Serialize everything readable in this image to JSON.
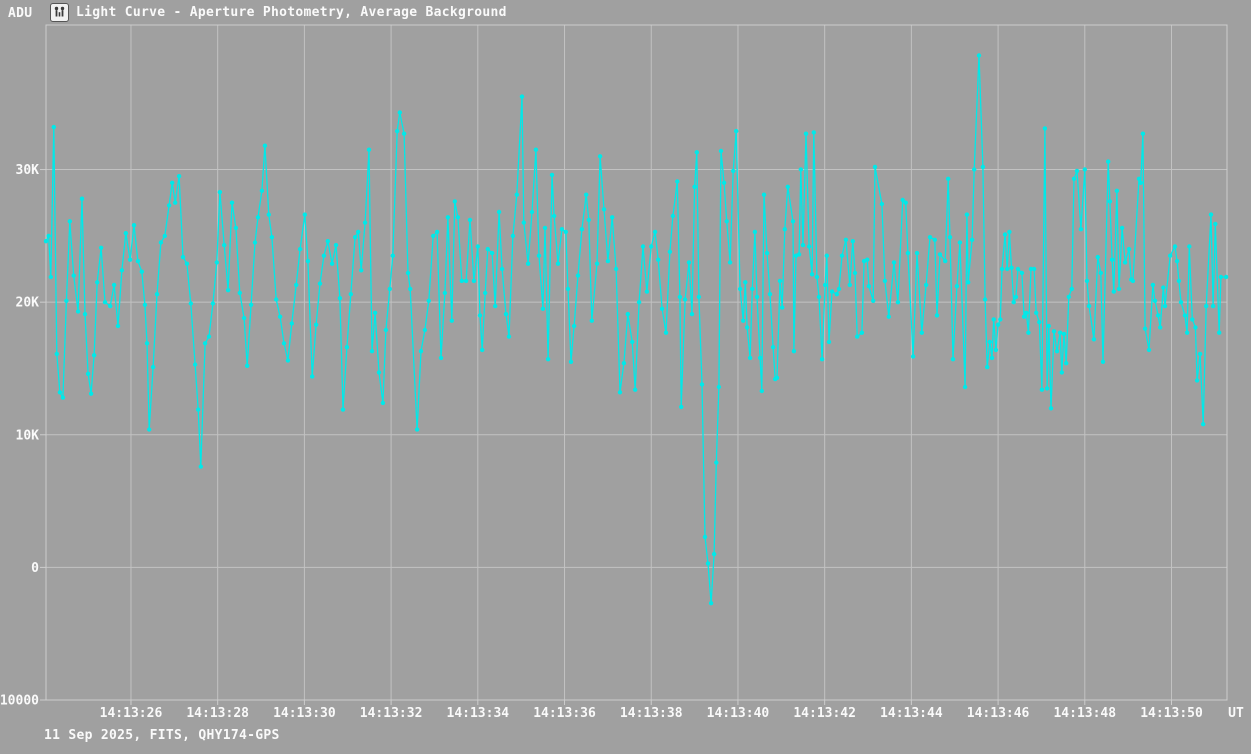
{
  "header": {
    "y_unit": "ADU",
    "title": "Light Curve - Aperture Photometry, Average Background",
    "icon": "app-logo"
  },
  "footer": {
    "status": "11 Sep 2025, FITS, QHY174-GPS"
  },
  "colors": {
    "background": "#a0a0a0",
    "grid": "#c2c2c2",
    "border": "#cdcdcd",
    "text": "#fafafa",
    "series": "#00e9e9",
    "icon_glyph": "#3a3a3a"
  },
  "chart_data": {
    "type": "line",
    "title": "Light Curve - Aperture Photometry, Average Background",
    "xlabel": "UT",
    "ylabel": "ADU",
    "x_axis_end_label": "UT",
    "x_unit": "seconds after 14:13:00 UT",
    "value_unit": "kADU",
    "grid": true,
    "legend": "none",
    "marker": "dot",
    "xlim": [
      24.04,
      51.28
    ],
    "ylim": [
      -10000,
      40900
    ],
    "x_ticks": [
      {
        "t": 26,
        "label": "14:13:26"
      },
      {
        "t": 28,
        "label": "14:13:28"
      },
      {
        "t": 30,
        "label": "14:13:30"
      },
      {
        "t": 32,
        "label": "14:13:32"
      },
      {
        "t": 34,
        "label": "14:13:34"
      },
      {
        "t": 36,
        "label": "14:13:36"
      },
      {
        "t": 38,
        "label": "14:13:38"
      },
      {
        "t": 40,
        "label": "14:13:40"
      },
      {
        "t": 42,
        "label": "14:13:42"
      },
      {
        "t": 44,
        "label": "14:13:44"
      },
      {
        "t": 46,
        "label": "14:13:46"
      },
      {
        "t": 48,
        "label": "14:13:48"
      },
      {
        "t": 50,
        "label": "14:13:50"
      }
    ],
    "y_ticks": [
      {
        "v": 30000,
        "label": "30K"
      },
      {
        "v": 20000,
        "label": "20K"
      },
      {
        "v": 10000,
        "label": "10K"
      },
      {
        "v": 0,
        "label": "0"
      },
      {
        "v": -10000,
        "label": "-10000"
      }
    ],
    "points": [
      [
        24.04,
        24.6
      ],
      [
        24.1,
        25.0
      ],
      [
        24.15,
        21.9
      ],
      [
        24.22,
        33.2
      ],
      [
        24.29,
        16.1
      ],
      [
        24.36,
        13.2
      ],
      [
        24.43,
        12.8
      ],
      [
        24.51,
        20.1
      ],
      [
        24.59,
        26.1
      ],
      [
        24.68,
        22.0
      ],
      [
        24.78,
        19.3
      ],
      [
        24.87,
        27.8
      ],
      [
        24.94,
        19.1
      ],
      [
        25.01,
        14.6
      ],
      [
        25.08,
        13.1
      ],
      [
        25.15,
        16.0
      ],
      [
        25.22,
        21.5
      ],
      [
        25.31,
        24.1
      ],
      [
        25.4,
        20.0
      ],
      [
        25.52,
        19.7
      ],
      [
        25.61,
        21.3
      ],
      [
        25.7,
        18.2
      ],
      [
        25.79,
        22.4
      ],
      [
        25.88,
        25.2
      ],
      [
        25.98,
        23.2
      ],
      [
        26.07,
        25.8
      ],
      [
        26.16,
        23.1
      ],
      [
        26.25,
        22.3
      ],
      [
        26.32,
        19.8
      ],
      [
        26.37,
        16.9
      ],
      [
        26.42,
        10.4
      ],
      [
        26.51,
        15.1
      ],
      [
        26.6,
        20.6
      ],
      [
        26.69,
        24.5
      ],
      [
        26.78,
        25.0
      ],
      [
        26.88,
        27.3
      ],
      [
        26.95,
        29.0
      ],
      [
        27.02,
        27.5
      ],
      [
        27.11,
        29.5
      ],
      [
        27.2,
        23.4
      ],
      [
        27.29,
        22.9
      ],
      [
        27.38,
        19.9
      ],
      [
        27.48,
        15.3
      ],
      [
        27.55,
        11.9
      ],
      [
        27.61,
        7.6
      ],
      [
        27.71,
        16.9
      ],
      [
        27.8,
        17.4
      ],
      [
        27.89,
        19.9
      ],
      [
        27.98,
        23.0
      ],
      [
        28.05,
        28.3
      ],
      [
        28.15,
        24.3
      ],
      [
        28.24,
        20.9
      ],
      [
        28.33,
        27.5
      ],
      [
        28.42,
        25.6
      ],
      [
        28.51,
        20.7
      ],
      [
        28.61,
        18.8
      ],
      [
        28.68,
        15.2
      ],
      [
        28.77,
        19.8
      ],
      [
        28.86,
        24.5
      ],
      [
        28.93,
        26.4
      ],
      [
        29.02,
        28.4
      ],
      [
        29.09,
        31.8
      ],
      [
        29.18,
        26.6
      ],
      [
        29.25,
        24.9
      ],
      [
        29.35,
        20.2
      ],
      [
        29.44,
        18.9
      ],
      [
        29.53,
        16.9
      ],
      [
        29.62,
        15.6
      ],
      [
        29.71,
        18.4
      ],
      [
        29.81,
        21.3
      ],
      [
        29.9,
        24.0
      ],
      [
        30.01,
        26.6
      ],
      [
        30.08,
        23.1
      ],
      [
        30.18,
        14.4
      ],
      [
        30.27,
        18.3
      ],
      [
        30.36,
        21.4
      ],
      [
        30.45,
        23.5
      ],
      [
        30.54,
        24.6
      ],
      [
        30.64,
        22.9
      ],
      [
        30.73,
        24.3
      ],
      [
        30.82,
        20.3
      ],
      [
        30.89,
        11.9
      ],
      [
        30.98,
        16.6
      ],
      [
        31.07,
        20.6
      ],
      [
        31.17,
        24.9
      ],
      [
        31.24,
        25.3
      ],
      [
        31.31,
        22.4
      ],
      [
        31.4,
        26.0
      ],
      [
        31.49,
        31.5
      ],
      [
        31.56,
        16.3
      ],
      [
        31.63,
        19.2
      ],
      [
        31.72,
        14.7
      ],
      [
        31.81,
        12.4
      ],
      [
        31.88,
        17.9
      ],
      [
        31.97,
        21.0
      ],
      [
        32.04,
        23.5
      ],
      [
        32.14,
        32.9
      ],
      [
        32.2,
        34.3
      ],
      [
        32.3,
        32.7
      ],
      [
        32.39,
        22.2
      ],
      [
        32.44,
        21.0
      ],
      [
        32.6,
        10.4
      ],
      [
        32.69,
        16.3
      ],
      [
        32.78,
        17.9
      ],
      [
        32.87,
        20.1
      ],
      [
        32.97,
        25.0
      ],
      [
        33.06,
        25.3
      ],
      [
        33.15,
        15.8
      ],
      [
        33.24,
        20.7
      ],
      [
        33.31,
        26.4
      ],
      [
        33.4,
        18.6
      ],
      [
        33.47,
        27.6
      ],
      [
        33.54,
        26.4
      ],
      [
        33.63,
        21.6
      ],
      [
        33.73,
        21.6
      ],
      [
        33.82,
        26.2
      ],
      [
        33.91,
        21.6
      ],
      [
        34.0,
        24.2
      ],
      [
        34.05,
        19.0
      ],
      [
        34.1,
        16.4
      ],
      [
        34.17,
        20.7
      ],
      [
        34.23,
        24.0
      ],
      [
        34.33,
        23.7
      ],
      [
        34.4,
        19.7
      ],
      [
        34.49,
        26.8
      ],
      [
        34.56,
        22.5
      ],
      [
        34.65,
        19.1
      ],
      [
        34.72,
        17.4
      ],
      [
        34.81,
        25.0
      ],
      [
        34.9,
        28.1
      ],
      [
        35.02,
        35.5
      ],
      [
        35.06,
        26.0
      ],
      [
        35.16,
        22.9
      ],
      [
        35.25,
        26.8
      ],
      [
        35.34,
        31.5
      ],
      [
        35.41,
        23.5
      ],
      [
        35.5,
        19.5
      ],
      [
        35.55,
        25.6
      ],
      [
        35.62,
        15.7
      ],
      [
        35.71,
        29.6
      ],
      [
        35.76,
        26.5
      ],
      [
        35.85,
        22.9
      ],
      [
        35.94,
        25.5
      ],
      [
        36.03,
        25.3
      ],
      [
        36.08,
        21.0
      ],
      [
        36.15,
        15.5
      ],
      [
        36.22,
        18.2
      ],
      [
        36.31,
        22.0
      ],
      [
        36.4,
        25.5
      ],
      [
        36.5,
        28.1
      ],
      [
        36.56,
        26.2
      ],
      [
        36.63,
        18.6
      ],
      [
        36.75,
        22.9
      ],
      [
        36.82,
        31.0
      ],
      [
        36.91,
        27.0
      ],
      [
        37.0,
        23.1
      ],
      [
        37.1,
        26.4
      ],
      [
        37.19,
        22.5
      ],
      [
        37.28,
        13.2
      ],
      [
        37.37,
        15.4
      ],
      [
        37.46,
        19.1
      ],
      [
        37.56,
        17.0
      ],
      [
        37.63,
        13.4
      ],
      [
        37.72,
        20.0
      ],
      [
        37.81,
        24.2
      ],
      [
        37.9,
        20.8
      ],
      [
        38.0,
        24.2
      ],
      [
        38.09,
        25.3
      ],
      [
        38.16,
        23.2
      ],
      [
        38.25,
        19.5
      ],
      [
        38.34,
        17.7
      ],
      [
        38.43,
        23.8
      ],
      [
        38.5,
        26.5
      ],
      [
        38.6,
        29.1
      ],
      [
        38.66,
        20.4
      ],
      [
        38.69,
        12.1
      ],
      [
        38.78,
        20.2
      ],
      [
        38.87,
        23.0
      ],
      [
        38.94,
        19.1
      ],
      [
        39.0,
        28.7
      ],
      [
        39.05,
        31.3
      ],
      [
        39.1,
        20.4
      ],
      [
        39.17,
        13.8
      ],
      [
        39.24,
        2.3
      ],
      [
        39.31,
        0.3
      ],
      [
        39.38,
        -2.7
      ],
      [
        39.45,
        1.0
      ],
      [
        39.5,
        7.9
      ],
      [
        39.56,
        13.6
      ],
      [
        39.61,
        31.4
      ],
      [
        39.68,
        29.0
      ],
      [
        39.74,
        26.1
      ],
      [
        39.82,
        23.0
      ],
      [
        39.89,
        29.9
      ],
      [
        39.96,
        32.9
      ],
      [
        40.05,
        21.0
      ],
      [
        40.12,
        18.6
      ],
      [
        40.17,
        21.5
      ],
      [
        40.21,
        18.1
      ],
      [
        40.28,
        15.8
      ],
      [
        40.33,
        21.0
      ],
      [
        40.39,
        25.3
      ],
      [
        40.44,
        20.4
      ],
      [
        40.51,
        15.8
      ],
      [
        40.55,
        13.3
      ],
      [
        40.6,
        28.1
      ],
      [
        40.67,
        23.7
      ],
      [
        40.74,
        20.6
      ],
      [
        40.81,
        16.6
      ],
      [
        40.86,
        14.2
      ],
      [
        40.9,
        14.3
      ],
      [
        40.97,
        21.6
      ],
      [
        41.02,
        19.6
      ],
      [
        41.08,
        25.5
      ],
      [
        41.15,
        28.7
      ],
      [
        41.27,
        26.1
      ],
      [
        41.29,
        16.3
      ],
      [
        41.34,
        23.5
      ],
      [
        41.41,
        23.6
      ],
      [
        41.45,
        30.0
      ],
      [
        41.5,
        24.3
      ],
      [
        41.57,
        32.7
      ],
      [
        41.64,
        24.2
      ],
      [
        41.71,
        22.1
      ],
      [
        41.75,
        32.8
      ],
      [
        41.82,
        21.9
      ],
      [
        41.87,
        20.4
      ],
      [
        41.94,
        15.7
      ],
      [
        42.01,
        21.3
      ],
      [
        42.05,
        23.5
      ],
      [
        42.1,
        17.0
      ],
      [
        42.17,
        20.8
      ],
      [
        42.28,
        20.6
      ],
      [
        42.33,
        21.0
      ],
      [
        42.4,
        23.5
      ],
      [
        42.49,
        24.7
      ],
      [
        42.58,
        21.3
      ],
      [
        42.65,
        24.6
      ],
      [
        42.7,
        22.2
      ],
      [
        42.75,
        17.4
      ],
      [
        42.86,
        17.7
      ],
      [
        42.91,
        23.1
      ],
      [
        42.98,
        23.2
      ],
      [
        43.02,
        21.2
      ],
      [
        43.12,
        20.1
      ],
      [
        43.16,
        30.2
      ],
      [
        43.32,
        27.4
      ],
      [
        43.39,
        21.6
      ],
      [
        43.48,
        18.9
      ],
      [
        43.6,
        23.0
      ],
      [
        43.69,
        20.0
      ],
      [
        43.8,
        27.7
      ],
      [
        43.87,
        27.5
      ],
      [
        43.92,
        23.7
      ],
      [
        44.04,
        15.9
      ],
      [
        44.13,
        23.7
      ],
      [
        44.24,
        17.7
      ],
      [
        44.34,
        21.3
      ],
      [
        44.43,
        24.9
      ],
      [
        44.54,
        24.7
      ],
      [
        44.59,
        19.0
      ],
      [
        44.66,
        23.6
      ],
      [
        44.78,
        23.1
      ],
      [
        44.85,
        29.3
      ],
      [
        44.89,
        24.9
      ],
      [
        44.96,
        15.7
      ],
      [
        45.05,
        21.2
      ],
      [
        45.12,
        24.5
      ],
      [
        45.24,
        13.6
      ],
      [
        45.28,
        26.6
      ],
      [
        45.31,
        21.5
      ],
      [
        45.4,
        24.7
      ],
      [
        45.45,
        30.0
      ],
      [
        45.56,
        38.6
      ],
      [
        45.65,
        30.2
      ],
      [
        45.7,
        20.2
      ],
      [
        45.75,
        15.1
      ],
      [
        45.81,
        17.0
      ],
      [
        45.86,
        15.8
      ],
      [
        45.9,
        18.7
      ],
      [
        45.95,
        16.4
      ],
      [
        46.0,
        18.3
      ],
      [
        46.05,
        18.7
      ],
      [
        46.09,
        22.5
      ],
      [
        46.16,
        25.1
      ],
      [
        46.21,
        22.5
      ],
      [
        46.26,
        25.3
      ],
      [
        46.31,
        22.6
      ],
      [
        46.36,
        20.0
      ],
      [
        46.41,
        20.4
      ],
      [
        46.46,
        22.5
      ],
      [
        46.55,
        22.2
      ],
      [
        46.6,
        18.9
      ],
      [
        46.65,
        19.2
      ],
      [
        46.7,
        17.7
      ],
      [
        46.76,
        22.5
      ],
      [
        46.83,
        22.5
      ],
      [
        46.88,
        19.2
      ],
      [
        46.95,
        18.5
      ],
      [
        47.01,
        13.4
      ],
      [
        47.08,
        33.1
      ],
      [
        47.13,
        13.5
      ],
      [
        47.17,
        18.2
      ],
      [
        47.22,
        12.0
      ],
      [
        47.29,
        17.8
      ],
      [
        47.36,
        16.3
      ],
      [
        47.43,
        17.7
      ],
      [
        47.47,
        14.7
      ],
      [
        47.52,
        17.6
      ],
      [
        47.57,
        15.4
      ],
      [
        47.63,
        20.4
      ],
      [
        47.7,
        21.0
      ],
      [
        47.75,
        29.3
      ],
      [
        47.82,
        29.9
      ],
      [
        47.91,
        25.5
      ],
      [
        48.0,
        30.0
      ],
      [
        48.05,
        21.6
      ],
      [
        48.1,
        19.7
      ],
      [
        48.21,
        17.2
      ],
      [
        48.3,
        23.4
      ],
      [
        48.37,
        22.2
      ],
      [
        48.42,
        15.5
      ],
      [
        48.54,
        30.6
      ],
      [
        48.58,
        27.6
      ],
      [
        48.63,
        23.2
      ],
      [
        48.67,
        20.8
      ],
      [
        48.74,
        28.4
      ],
      [
        48.79,
        21.0
      ],
      [
        48.86,
        25.6
      ],
      [
        48.93,
        23.0
      ],
      [
        49.02,
        24.0
      ],
      [
        49.07,
        21.7
      ],
      [
        49.11,
        21.6
      ],
      [
        49.25,
        29.3
      ],
      [
        49.29,
        29.0
      ],
      [
        49.34,
        32.7
      ],
      [
        49.39,
        18.0
      ],
      [
        49.48,
        16.4
      ],
      [
        49.57,
        21.3
      ],
      [
        49.62,
        20.1
      ],
      [
        49.69,
        19.0
      ],
      [
        49.74,
        18.1
      ],
      [
        49.81,
        21.1
      ],
      [
        49.85,
        19.7
      ],
      [
        49.97,
        23.5
      ],
      [
        50.08,
        24.2
      ],
      [
        50.13,
        23.1
      ],
      [
        50.17,
        21.6
      ],
      [
        50.22,
        20.0
      ],
      [
        50.31,
        19.0
      ],
      [
        50.36,
        17.7
      ],
      [
        50.41,
        24.2
      ],
      [
        50.48,
        18.7
      ],
      [
        50.55,
        18.1
      ],
      [
        50.59,
        14.1
      ],
      [
        50.66,
        16.1
      ],
      [
        50.73,
        10.8
      ],
      [
        50.8,
        19.7
      ],
      [
        50.91,
        26.6
      ],
      [
        50.96,
        19.7
      ],
      [
        51.01,
        25.9
      ],
      [
        51.1,
        17.7
      ],
      [
        51.14,
        21.9
      ],
      [
        51.26,
        21.9
      ]
    ]
  }
}
